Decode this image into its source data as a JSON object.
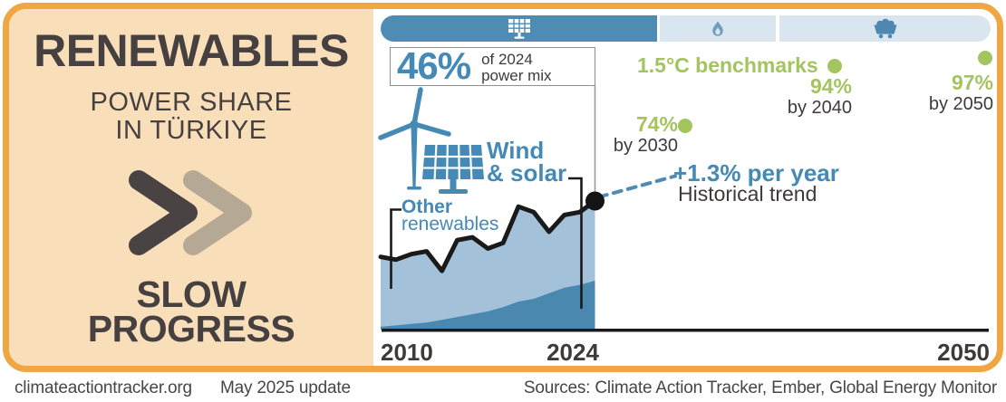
{
  "brand": {
    "title": "RENEWABLES",
    "subtitle_line1": "POWER SHARE",
    "subtitle_line2": "IN TÜRKIYE",
    "assessment_line1": "SLOW",
    "assessment_line2": "PROGRESS"
  },
  "tabs": {
    "solar": {
      "icon": "solar-panel-icon",
      "active": true
    },
    "gas": {
      "icon": "gas-flame-icon",
      "active": false
    },
    "coal": {
      "icon": "coal-cart-icon",
      "active": false
    }
  },
  "callout": {
    "value": "46%",
    "caption_line1": "of 2024",
    "caption_line2": "power mix"
  },
  "labels": {
    "wind_solar_line1": "Wind",
    "wind_solar_line2": "& solar",
    "other_line1": "Other",
    "other_line2": "renewables"
  },
  "benchmarks": {
    "title": "1.5°C benchmarks",
    "b2030": {
      "value": "74%",
      "caption": "by 2030"
    },
    "b2040": {
      "value": "94%",
      "caption": "by 2040"
    },
    "b2050": {
      "value": "97%",
      "caption": "by 2050"
    }
  },
  "trend": {
    "value": "+1.3% per year",
    "caption": "Historical trend"
  },
  "axis": {
    "tick_start": "2010",
    "tick_current": "2024",
    "tick_end": "2050"
  },
  "footer": {
    "site": "climateactiontracker.org",
    "update": "May 2025 update",
    "sources": "Sources: Climate Action Tracker, Ember, Global Energy Monitor"
  },
  "colors": {
    "accent_blue": "#4589B5",
    "tab_active_blue": "#4E8CB4",
    "tab_inactive_bg": "#DAE6EF",
    "area_dark_blue": "#4A88B0",
    "area_light_blue": "#A3C2DA",
    "benchmark_green": "#A4C45F",
    "orange_border": "#F0A643",
    "panel_peach": "#F8DFBA",
    "text_dark": "#474040",
    "chevron_light": "#B5A894"
  },
  "chart_data": {
    "type": "area",
    "title": "Renewables power share in Türkiye (% of power mix)",
    "stacked": true,
    "x": [
      2010,
      2011,
      2012,
      2013,
      2014,
      2015,
      2016,
      2017,
      2018,
      2019,
      2020,
      2021,
      2022,
      2023,
      2024
    ],
    "series": [
      {
        "name": "Wind & solar",
        "color": "#4A88B0",
        "values": [
          1,
          1.5,
          2,
          2.5,
          3.5,
          4.5,
          5.5,
          6.5,
          8,
          10,
          11,
          13,
          15,
          16,
          17.5
        ]
      },
      {
        "name": "Other renewables",
        "color": "#A3C2DA",
        "values": [
          25,
          23.5,
          25,
          25.5,
          17.5,
          27.5,
          27.5,
          22.5,
          23,
          34,
          31,
          22,
          26,
          26,
          28.5
        ]
      }
    ],
    "total_line": {
      "color": "#1A1A1A",
      "end_value_2024": 46
    },
    "annotations": {
      "current": {
        "x": 2024,
        "y": 46,
        "label": "46% of 2024 power mix"
      },
      "trend": {
        "label": "+1.3% per year",
        "sublabel": "Historical trend"
      },
      "benchmarks": [
        {
          "x": 2030,
          "y": 74,
          "label": "74% by 2030"
        },
        {
          "x": 2040,
          "y": 94,
          "label": "94% by 2040"
        },
        {
          "x": 2050,
          "y": 97,
          "label": "97% by 2050"
        }
      ]
    },
    "xlim": [
      2010,
      2050
    ],
    "ylim": [
      0,
      100
    ],
    "x_ticks": [
      "2010",
      "2024",
      "2050"
    ],
    "grid": false,
    "legend": "inline-labels"
  }
}
